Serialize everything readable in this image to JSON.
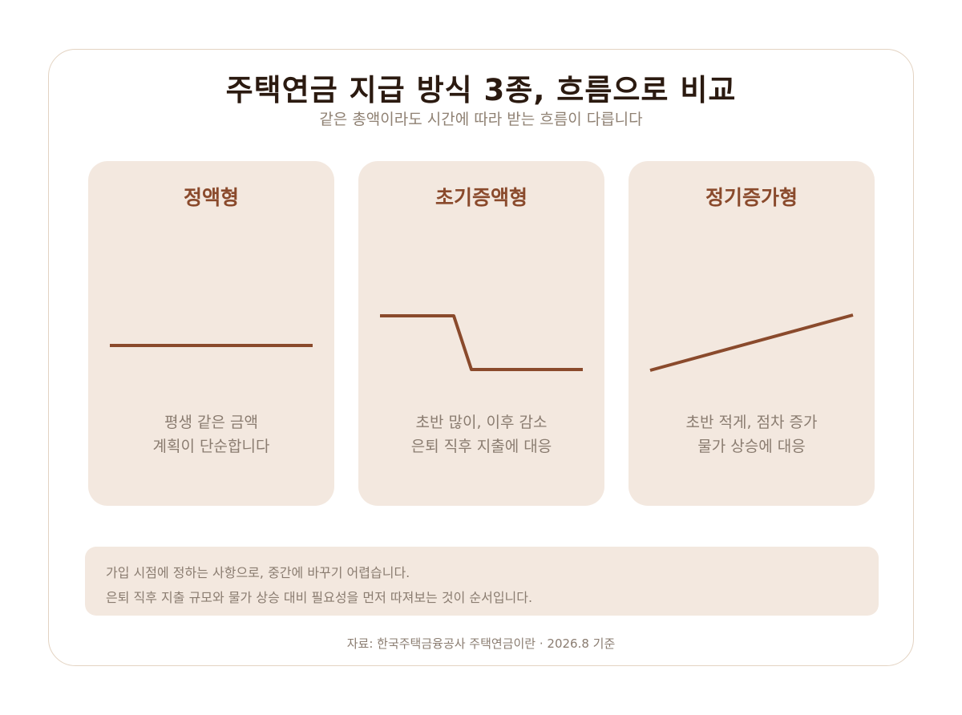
{
  "title": "주택연금 지급 방식 3종, 흐름으로 비교",
  "subtitle": "같은 총액이라도 시간에 따라 받는 흐름이 다릅니다",
  "colors": {
    "accent": "#8a4a2c",
    "card_background": "#f3e8df",
    "title": "#2b1a10",
    "muted_text": "#8a7c70"
  },
  "cards": [
    {
      "title": "정액형",
      "desc_line1": "평생 같은 금액",
      "desc_line2": "계획이 단순합니다",
      "trend": "flat"
    },
    {
      "title": "초기증액형",
      "desc_line1": "초반 많이, 이후 감소",
      "desc_line2": "은퇴 직후 지출에 대응",
      "trend": "high-then-drop"
    },
    {
      "title": "정기증가형",
      "desc_line1": "초반 적게, 점차 증가",
      "desc_line2": "물가 상승에 대응",
      "trend": "rising"
    }
  ],
  "note": {
    "line1": "가입 시점에 정하는 사항으로, 중간에 바꾸기 어렵습니다.",
    "line2": "은퇴 직후 지출 규모와 물가 상승 대비 필요성을 먼저 따져보는 것이 순서입니다."
  },
  "source": "자료: 한국주택금융공사 주택연금이란 · 2026.8 기준"
}
